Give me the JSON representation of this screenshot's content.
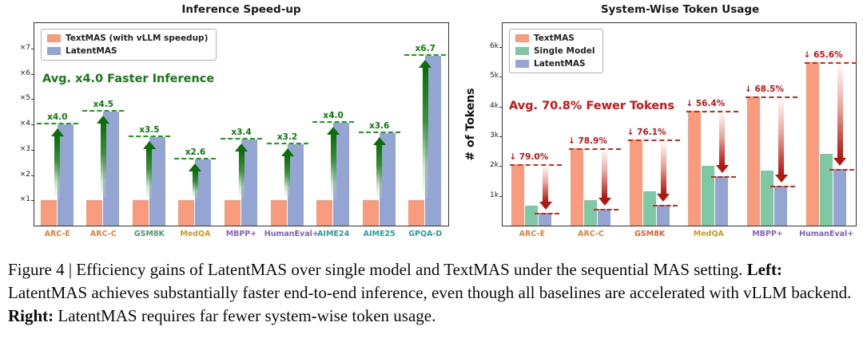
{
  "chart_data": [
    {
      "type": "bar",
      "title": "Inference Speed-up",
      "categories": [
        "ARC-E",
        "ARC-C",
        "GSM8K",
        "MedQA",
        "MBPP+",
        "HumanEval+",
        "AIME24",
        "AIME25",
        "GPQA-D"
      ],
      "category_colors": [
        "#E5823B",
        "#E5823B",
        "#4E9A6A",
        "#C99A2C",
        "#8A63B8",
        "#7A5FC0",
        "#2E9E9B",
        "#2E9E9B",
        "#2E9E9B"
      ],
      "series": [
        {
          "name": "TextMAS (with vLLM speedup)",
          "color": "#F99C7D",
          "values": [
            1,
            1,
            1,
            1,
            1,
            1,
            1,
            1,
            1
          ]
        },
        {
          "name": "LatentMAS",
          "color": "#95A5D3",
          "values": [
            4.0,
            4.5,
            3.5,
            2.6,
            3.4,
            3.2,
            4.05,
            3.65,
            6.7
          ]
        }
      ],
      "speedup_labels": [
        "x4.0",
        "x4.5",
        "x3.5",
        "x2.6",
        "x3.4",
        "x3.2",
        "x4.0",
        "x3.6",
        "x6.7"
      ],
      "annotation": "Avg. x4.0 Faster Inference",
      "annotation_color": "#157a15",
      "ytick_labels": [
        "×1",
        "×2",
        "×3",
        "×4",
        "×5",
        "×6",
        "×7"
      ],
      "ytick_values": [
        1,
        2,
        3,
        4,
        5,
        6,
        7
      ],
      "ylim": [
        0,
        8
      ],
      "xlabel": "",
      "ylabel": "",
      "legend_position": "upper left",
      "grid": false
    },
    {
      "type": "bar",
      "title": "System-Wise Token Usage",
      "categories": [
        "ARC-E",
        "ARC-C",
        "GSM8K",
        "MedQA",
        "MBPP+",
        "HumanEval+"
      ],
      "category_colors": [
        "#E5823B",
        "#E5823B",
        "#E06236",
        "#C99A2C",
        "#8A63B8",
        "#7A5FC0"
      ],
      "series": [
        {
          "name": "TextMAS",
          "color": "#F99C7D",
          "values": [
            2050,
            2600,
            2900,
            3850,
            4350,
            5500
          ]
        },
        {
          "name": "Single Model",
          "color": "#7EC8A3",
          "values": [
            680,
            850,
            1150,
            2000,
            1850,
            2400
          ]
        },
        {
          "name": "LatentMAS",
          "color": "#95A5D3",
          "values": [
            430,
            550,
            700,
            1650,
            1350,
            1900
          ]
        }
      ],
      "reduction_labels": [
        "↓ 79.0%",
        "↓ 78.9%",
        "↓ 76.1%",
        "↓ 56.4%",
        "↓ 68.5%",
        "↓ 65.6%"
      ],
      "annotation": "Avg. 70.8% Fewer Tokens",
      "annotation_color": "#cc1414",
      "ytick_labels": [
        "1k",
        "2k",
        "3k",
        "4k",
        "5k",
        "6k"
      ],
      "ytick_values": [
        1000,
        2000,
        3000,
        4000,
        5000,
        6000
      ],
      "ylim": [
        0,
        6800
      ],
      "xlabel": "",
      "ylabel": "# of Tokens",
      "legend_position": "upper left",
      "grid": false
    }
  ],
  "caption": {
    "part1": "Figure 4 | Efficiency gains of LatentMAS over single model and TextMAS under the sequential MAS setting. ",
    "left_label": "Left:",
    "part2": " LatentMAS achieves substantially faster end-to-end inference, even though all baselines are accelerated with vLLM backend. ",
    "right_label": "Right:",
    "part3": " LatentMAS requires far fewer system-wise token usage."
  }
}
